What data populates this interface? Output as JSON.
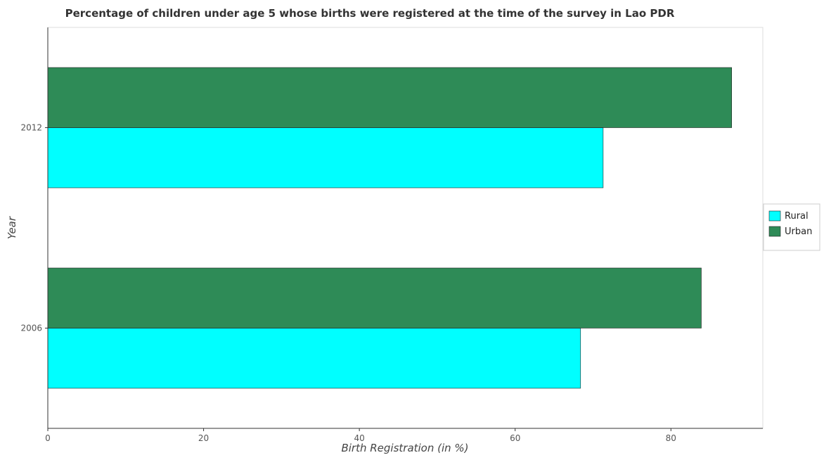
{
  "chart_data": {
    "type": "bar",
    "orientation": "horizontal",
    "title": "Percentage of children under age 5 whose births were registered at the time of the survey in Lao PDR",
    "xlabel": "Birth Registration (in %)",
    "ylabel": "Year",
    "categories": [
      "2006",
      "2012"
    ],
    "series": [
      {
        "name": "Rural",
        "color": "#00ffff",
        "values": [
          68.4,
          71.3
        ]
      },
      {
        "name": "Urban",
        "color": "#2e8b57",
        "values": [
          83.9,
          87.8
        ]
      }
    ],
    "xlim": [
      0,
      91.8
    ],
    "xticks": [
      0,
      20,
      40,
      60,
      80
    ],
    "legend_position": "right",
    "grid": false
  }
}
